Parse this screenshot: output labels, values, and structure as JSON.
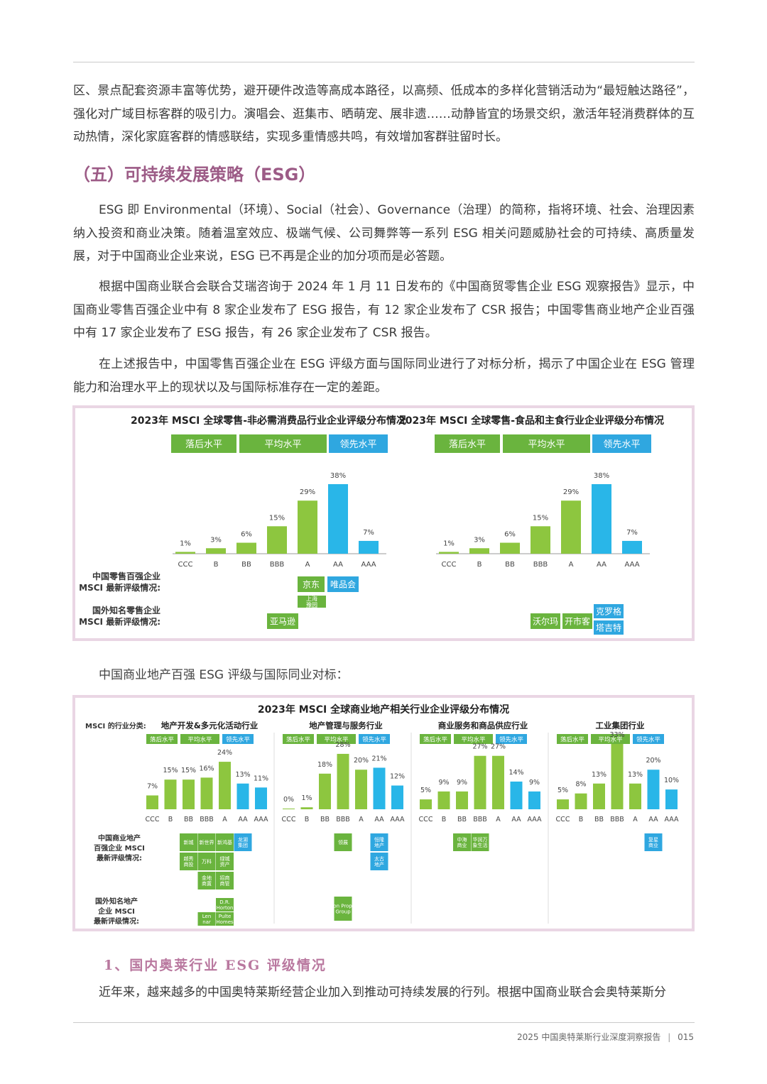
{
  "intro_paragraph": "区、景点配套资源丰富等优势，避开硬件改造等高成本路径，以高频、低成本的多样化营销活动为“最短触达路径”，强化对广域目标客群的吸引力。演唱会、逛集市、晒萌宠、展非遗……动静皆宜的场景交织，激活年轻消费群体的互动热情，深化家庭客群的情感联结，实现多重情感共鸣，有效增加客群驻留时长。",
  "section_title": "（五）可持续发展策略（ESG）",
  "paragraphs": [
    "ESG 即 Environmental（环境）、Social（社会）、Governance（治理）的简称，指将环境、社会、治理因素纳入投资和商业决策。随着温室效应、极端气候、公司舞弊等一系列 ESG 相关问题威胁社会的可持续、高质量发展，对于中国商业企业来说，ESG 已不再是企业的加分项而是必答题。",
    "根据中国商业联合会联合艾瑞咨询于 2024 年 1 月 11 日发布的《中国商贸零售企业 ESG 观察报告》显示，中国商业零售百强企业中有 8 家企业发布了 ESG 报告，有 12 家企业发布了 CSR 报告；中国零售商业地产企业百强中有 17 家企业发布了 ESG 报告，有 26 家企业发布了 CSR 报告。",
    "在上述报告中，中国零售百强企业在 ESG 评级方面与国际同业进行了对标分析，揭示了中国企业在 ESG 管理能力和治理水平上的现状以及与国际标准存在一定的差距。"
  ],
  "figure2_caption": "中国商业地产百强 ESG 评级与国际同业对标：",
  "subsection_title": "1、国内奥莱行业 ESG 评级情况",
  "last_paragraph": "近年来，越来越多的中国奥特莱斯经营企业加入到推动可持续发展的行列。根据中国商业联合会奥特莱斯分",
  "footer": {
    "report": "2025 中国奥特莱斯行业深度洞察报告",
    "separator": "|",
    "page": "015"
  },
  "colors": {
    "green": "#8dc63f",
    "blue": "#29b6e8",
    "label_green": "#6ab43e",
    "label_blue": "#2fa7e0",
    "pink_border": "#ead6e4",
    "title_purple": "#9c5b86"
  },
  "chart_data": [
    {
      "type": "bar",
      "title": "2023年 MSCI 全球零售-非必需消费品行业企业评级分布情况",
      "legend": [
        "落后水平",
        "平均水平",
        "领先水平"
      ],
      "categories": [
        "CCC",
        "B",
        "BB",
        "BBB",
        "A",
        "AA",
        "AAA"
      ],
      "values": [
        1,
        3,
        6,
        15,
        29,
        38,
        7
      ],
      "value_labels": [
        "1%",
        "3%",
        "6%",
        "15%",
        "29%",
        "38%",
        "7%"
      ],
      "row_labels": [
        "中国零售百强企业 MSCI 最新评级情况:",
        "国外知名零售企业 MSCI 最新评级情况:"
      ],
      "tags": [
        {
          "text": "京东",
          "rating": "A",
          "row": 0
        },
        {
          "text": "唯品会",
          "rating": "AA",
          "row": 0
        },
        {
          "text": "上海豫园",
          "rating": "A",
          "row": 0
        },
        {
          "text": "亚马逊",
          "rating": "BBB",
          "row": 1
        }
      ]
    },
    {
      "type": "bar",
      "title": "2023年 MSCI 全球零售-食品和主食行业企业评级分布情况",
      "legend": [
        "落后水平",
        "平均水平",
        "领先水平"
      ],
      "categories": [
        "CCC",
        "B",
        "BB",
        "BBB",
        "A",
        "AA",
        "AAA"
      ],
      "values": [
        1,
        3,
        6,
        15,
        29,
        38,
        7
      ],
      "value_labels": [
        "1%",
        "3%",
        "6%",
        "15%",
        "29%",
        "38%",
        "7%"
      ],
      "tags": [
        {
          "text": "沃尔玛",
          "rating": "A",
          "row": 1
        },
        {
          "text": "开市客",
          "rating": "A",
          "row": 1
        },
        {
          "text": "克罗格",
          "rating": "AA",
          "row": 1
        },
        {
          "text": "塔吉特",
          "rating": "AA",
          "row": 1
        }
      ]
    },
    {
      "type": "bar",
      "title": "2023年 MSCI 全球商业地产相关行业企业评级分布情况",
      "classification_label": "MSCI 的行业分类:",
      "legend": [
        "落后水平",
        "平均水平",
        "领先水平"
      ],
      "row_labels": [
        "中国商业地产百强企业 MSCI 最新评级情况:",
        "国外知名地产企业 MSCI 最新评级情况:"
      ],
      "panels": [
        {
          "name": "地产开发&多元化活动行业",
          "categories": [
            "CCC",
            "B",
            "BB",
            "BBB",
            "A",
            "AA",
            "AAA"
          ],
          "values": [
            7,
            15,
            15,
            16,
            24,
            13,
            11
          ],
          "value_labels": [
            "7%",
            "15%",
            "15%",
            "16%",
            "24%",
            "13%",
            "11%"
          ],
          "tags": [
            {
              "text": "新城",
              "rating": "BB",
              "row": 0,
              "slot": 0
            },
            {
              "text": "新世界",
              "rating": "BBB",
              "row": 0,
              "slot": 0
            },
            {
              "text": "新鸿基",
              "rating": "A",
              "row": 0,
              "slot": 0
            },
            {
              "text": "龙湖集团",
              "rating": "AA",
              "row": 0,
              "slot": 0
            },
            {
              "text": "越秀商投",
              "rating": "BB",
              "row": 0,
              "slot": 1
            },
            {
              "text": "万科",
              "rating": "BBB",
              "row": 0,
              "slot": 1
            },
            {
              "text": "绿城资产",
              "rating": "A",
              "row": 0,
              "slot": 1
            },
            {
              "text": "金地商置",
              "rating": "BBB",
              "row": 0,
              "slot": 2
            },
            {
              "text": "招商商管",
              "rating": "A",
              "row": 0,
              "slot": 2
            },
            {
              "text": "D.R. Horton",
              "rating": "A",
              "row": 1,
              "slot": 0
            },
            {
              "text": "Lennar",
              "rating": "BBB",
              "row": 1,
              "slot": 1
            },
            {
              "text": "Pulte Homes",
              "rating": "A",
              "row": 1,
              "slot": 1
            }
          ]
        },
        {
          "name": "地产管理与服务行业",
          "categories": [
            "CCC",
            "B",
            "BB",
            "BBB",
            "A",
            "AA",
            "AAA"
          ],
          "values": [
            0,
            1,
            18,
            28,
            20,
            21,
            12
          ],
          "value_labels": [
            "0%",
            "1%",
            "18%",
            "28%",
            "20%",
            "21%",
            "12%"
          ],
          "tags": [
            {
              "text": "领展",
              "rating": "BBB",
              "row": 0,
              "slot": 0
            },
            {
              "text": "恒隆地产",
              "rating": "AA",
              "row": 0,
              "slot": 0
            },
            {
              "text": "太古地产",
              "rating": "AA",
              "row": 0,
              "slot": 1
            },
            {
              "text": "Simon Property Group",
              "rating": "BBB",
              "row": 1,
              "slot": 0
            }
          ]
        },
        {
          "name": "商业服务和商品供应行业",
          "categories": [
            "CCC",
            "B",
            "BB",
            "BBB",
            "A",
            "AA",
            "AAA"
          ],
          "values": [
            5,
            9,
            9,
            27,
            27,
            14,
            9
          ],
          "value_labels": [
            "5%",
            "9%",
            "9%",
            "27%",
            "27%",
            "14%",
            "9%"
          ],
          "tags": [
            {
              "text": "中海商业",
              "rating": "BB",
              "row": 0,
              "slot": 0
            },
            {
              "text": "华润万象生活",
              "rating": "BBB",
              "row": 0,
              "slot": 0
            }
          ]
        },
        {
          "name": "工业集团行业",
          "categories": [
            "CCC",
            "B",
            "BB",
            "BBB",
            "A",
            "AA",
            "AAA"
          ],
          "values": [
            5,
            8,
            13,
            33,
            13,
            20,
            10
          ],
          "value_labels": [
            "5%",
            "8%",
            "13%",
            "33%",
            "13%",
            "20%",
            "10%"
          ],
          "tags": [
            {
              "text": "复星商业",
              "rating": "AA",
              "row": 0,
              "slot": 0
            }
          ]
        }
      ]
    }
  ]
}
